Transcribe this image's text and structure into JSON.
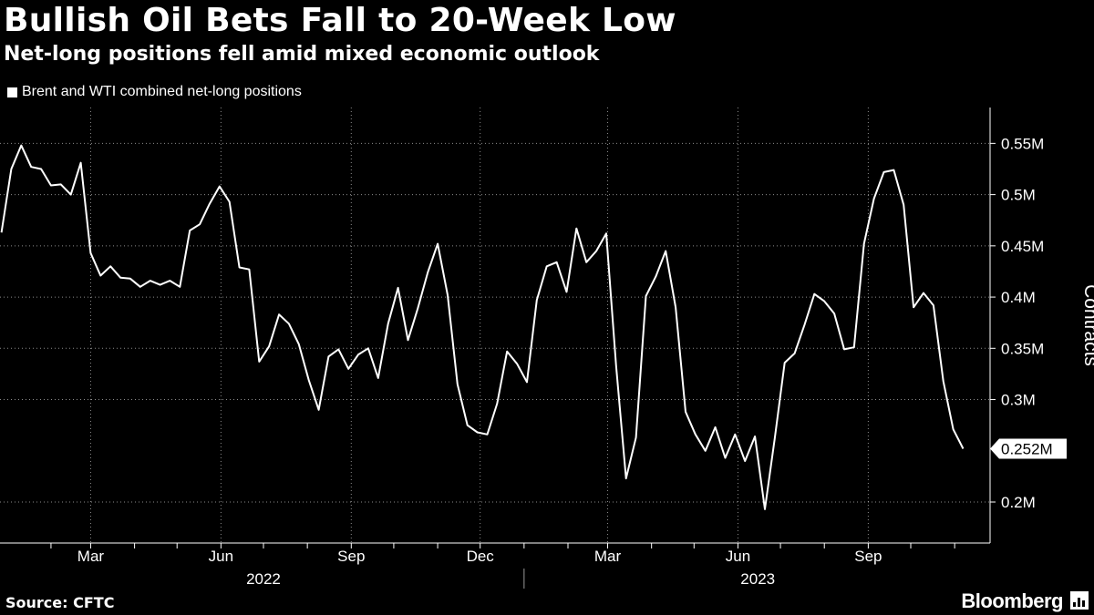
{
  "header": {
    "title": "Bullish Oil Bets Fall to 20-Week Low",
    "subtitle": "Net-long positions fell amid mixed economic outlook"
  },
  "legend": {
    "label": "Brent and WTI combined net-long positions"
  },
  "footer": {
    "source": "Source: CFTC",
    "brand": "Bloomberg"
  },
  "colors": {
    "background": "#000000",
    "line": "#ffffff"
  },
  "chart_data": {
    "type": "line",
    "title": "Bullish Oil Bets Fall to 20-Week Low",
    "subtitle": "Net-long positions fell amid mixed economic outlook",
    "ylabel": "Contracts",
    "xlabel": "",
    "ylim": [
      0.16,
      0.585
    ],
    "y_unit": "M contracts",
    "y_ticks": [
      {
        "value": 0.55,
        "label": "0.55M"
      },
      {
        "value": 0.5,
        "label": "0.5M"
      },
      {
        "value": 0.45,
        "label": "0.45M"
      },
      {
        "value": 0.4,
        "label": "0.4M"
      },
      {
        "value": 0.35,
        "label": "0.35M"
      },
      {
        "value": 0.3,
        "label": "0.3M"
      },
      {
        "value": 0.2,
        "label": "0.2M"
      }
    ],
    "x_month_ticks": [
      {
        "date": "2022-02-01",
        "label": ""
      },
      {
        "date": "2022-03-01",
        "label": "Mar"
      },
      {
        "date": "2022-04-01",
        "label": ""
      },
      {
        "date": "2022-05-01",
        "label": ""
      },
      {
        "date": "2022-06-01",
        "label": "Jun"
      },
      {
        "date": "2022-07-01",
        "label": ""
      },
      {
        "date": "2022-08-01",
        "label": ""
      },
      {
        "date": "2022-09-01",
        "label": "Sep"
      },
      {
        "date": "2022-10-01",
        "label": ""
      },
      {
        "date": "2022-11-01",
        "label": ""
      },
      {
        "date": "2022-12-01",
        "label": "Dec"
      },
      {
        "date": "2023-01-01",
        "label": ""
      },
      {
        "date": "2023-02-01",
        "label": ""
      },
      {
        "date": "2023-03-01",
        "label": "Mar"
      },
      {
        "date": "2023-04-01",
        "label": ""
      },
      {
        "date": "2023-05-01",
        "label": ""
      },
      {
        "date": "2023-06-01",
        "label": "Jun"
      },
      {
        "date": "2023-07-01",
        "label": ""
      },
      {
        "date": "2023-08-01",
        "label": ""
      },
      {
        "date": "2023-09-01",
        "label": "Sep"
      },
      {
        "date": "2023-10-01",
        "label": ""
      },
      {
        "date": "2023-11-01",
        "label": ""
      }
    ],
    "year_labels": [
      {
        "label": "2022",
        "center_date": "2022-07-01"
      },
      {
        "label": "2023",
        "center_date": "2023-06-15"
      }
    ],
    "year_divider_date": "2023-01-01",
    "last_value_label": "0.252M",
    "series": [
      {
        "name": "Brent and WTI combined net-long positions",
        "points": [
          [
            "2021-12-28",
            0.463
          ],
          [
            "2022-01-04",
            0.525
          ],
          [
            "2022-01-11",
            0.548
          ],
          [
            "2022-01-18",
            0.527
          ],
          [
            "2022-01-25",
            0.525
          ],
          [
            "2022-02-01",
            0.509
          ],
          [
            "2022-02-08",
            0.51
          ],
          [
            "2022-02-15",
            0.5
          ],
          [
            "2022-02-22",
            0.531
          ],
          [
            "2022-03-01",
            0.443
          ],
          [
            "2022-03-08",
            0.421
          ],
          [
            "2022-03-15",
            0.43
          ],
          [
            "2022-03-22",
            0.419
          ],
          [
            "2022-03-29",
            0.418
          ],
          [
            "2022-04-05",
            0.41
          ],
          [
            "2022-04-12",
            0.416
          ],
          [
            "2022-04-19",
            0.412
          ],
          [
            "2022-04-26",
            0.416
          ],
          [
            "2022-05-03",
            0.41
          ],
          [
            "2022-05-10",
            0.465
          ],
          [
            "2022-05-17",
            0.471
          ],
          [
            "2022-05-24",
            0.491
          ],
          [
            "2022-05-31",
            0.508
          ],
          [
            "2022-06-07",
            0.493
          ],
          [
            "2022-06-14",
            0.429
          ],
          [
            "2022-06-21",
            0.427
          ],
          [
            "2022-06-28",
            0.337
          ],
          [
            "2022-07-05",
            0.352
          ],
          [
            "2022-07-12",
            0.383
          ],
          [
            "2022-07-19",
            0.374
          ],
          [
            "2022-07-26",
            0.354
          ],
          [
            "2022-08-02",
            0.319
          ],
          [
            "2022-08-09",
            0.29
          ],
          [
            "2022-08-16",
            0.342
          ],
          [
            "2022-08-23",
            0.349
          ],
          [
            "2022-08-30",
            0.33
          ],
          [
            "2022-09-06",
            0.344
          ],
          [
            "2022-09-13",
            0.35
          ],
          [
            "2022-09-20",
            0.321
          ],
          [
            "2022-09-27",
            0.374
          ],
          [
            "2022-10-04",
            0.409
          ],
          [
            "2022-10-11",
            0.358
          ],
          [
            "2022-10-18",
            0.389
          ],
          [
            "2022-10-25",
            0.424
          ],
          [
            "2022-11-01",
            0.452
          ],
          [
            "2022-11-08",
            0.402
          ],
          [
            "2022-11-15",
            0.315
          ],
          [
            "2022-11-22",
            0.275
          ],
          [
            "2022-11-29",
            0.268
          ],
          [
            "2022-12-06",
            0.266
          ],
          [
            "2022-12-13",
            0.296
          ],
          [
            "2022-12-20",
            0.347
          ],
          [
            "2022-12-27",
            0.335
          ],
          [
            "2023-01-03",
            0.317
          ],
          [
            "2023-01-10",
            0.397
          ],
          [
            "2023-01-17",
            0.43
          ],
          [
            "2023-01-24",
            0.434
          ],
          [
            "2023-01-31",
            0.405
          ],
          [
            "2023-02-07",
            0.467
          ],
          [
            "2023-02-14",
            0.434
          ],
          [
            "2023-02-21",
            0.445
          ],
          [
            "2023-02-28",
            0.462
          ],
          [
            "2023-03-07",
            0.333
          ],
          [
            "2023-03-14",
            0.223
          ],
          [
            "2023-03-21",
            0.263
          ],
          [
            "2023-03-28",
            0.401
          ],
          [
            "2023-04-04",
            0.42
          ],
          [
            "2023-04-11",
            0.445
          ],
          [
            "2023-04-18",
            0.39
          ],
          [
            "2023-04-25",
            0.288
          ],
          [
            "2023-05-02",
            0.266
          ],
          [
            "2023-05-09",
            0.25
          ],
          [
            "2023-05-16",
            0.273
          ],
          [
            "2023-05-23",
            0.243
          ],
          [
            "2023-05-30",
            0.266
          ],
          [
            "2023-06-06",
            0.24
          ],
          [
            "2023-06-13",
            0.264
          ],
          [
            "2023-06-20",
            0.193
          ],
          [
            "2023-06-27",
            0.262
          ],
          [
            "2023-07-04",
            0.336
          ],
          [
            "2023-07-11",
            0.345
          ],
          [
            "2023-07-18",
            0.373
          ],
          [
            "2023-07-25",
            0.403
          ],
          [
            "2023-08-01",
            0.396
          ],
          [
            "2023-08-08",
            0.384
          ],
          [
            "2023-08-15",
            0.349
          ],
          [
            "2023-08-22",
            0.351
          ],
          [
            "2023-08-29",
            0.452
          ],
          [
            "2023-09-05",
            0.496
          ],
          [
            "2023-09-12",
            0.522
          ],
          [
            "2023-09-19",
            0.524
          ],
          [
            "2023-09-26",
            0.49
          ],
          [
            "2023-10-03",
            0.39
          ],
          [
            "2023-10-10",
            0.404
          ],
          [
            "2023-10-17",
            0.392
          ],
          [
            "2023-10-24",
            0.318
          ],
          [
            "2023-10-31",
            0.271
          ],
          [
            "2023-11-07",
            0.252
          ]
        ]
      }
    ]
  }
}
